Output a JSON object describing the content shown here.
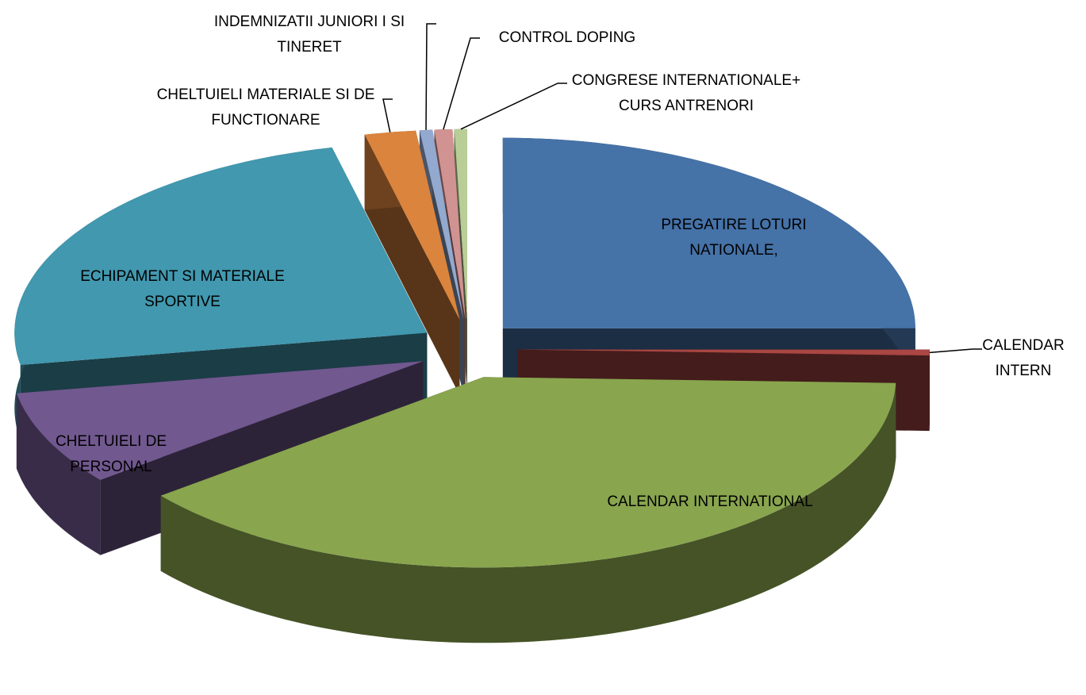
{
  "chart_data": {
    "type": "pie",
    "categories": [
      "PREGATIRE LOTURI NATIONALE,",
      "CALENDAR INTERN",
      "CALENDAR INTERNATIONAL",
      "CHELTUIELI DE PERSONAL",
      "ECHIPAMENT SI MATERIALE SPORTIVE",
      "CHELTUIELI MATERIALE SI DE FUNCTIONARE",
      "INDEMNIZATII JUNIORI I SI TINERET",
      "CONTROL DOPING",
      "CONGRESE INTERNATIONALE+ CURS ANTRENORI"
    ],
    "values": [
      25,
      0.5,
      38.8,
      8,
      24,
      2,
      0.5,
      0.7,
      0.5
    ],
    "colors": [
      "#4572a7",
      "#aa4643",
      "#89a54e",
      "#71588f",
      "#4198af",
      "#db843d",
      "#93a9cf",
      "#d19392",
      "#b9cd96"
    ]
  }
}
